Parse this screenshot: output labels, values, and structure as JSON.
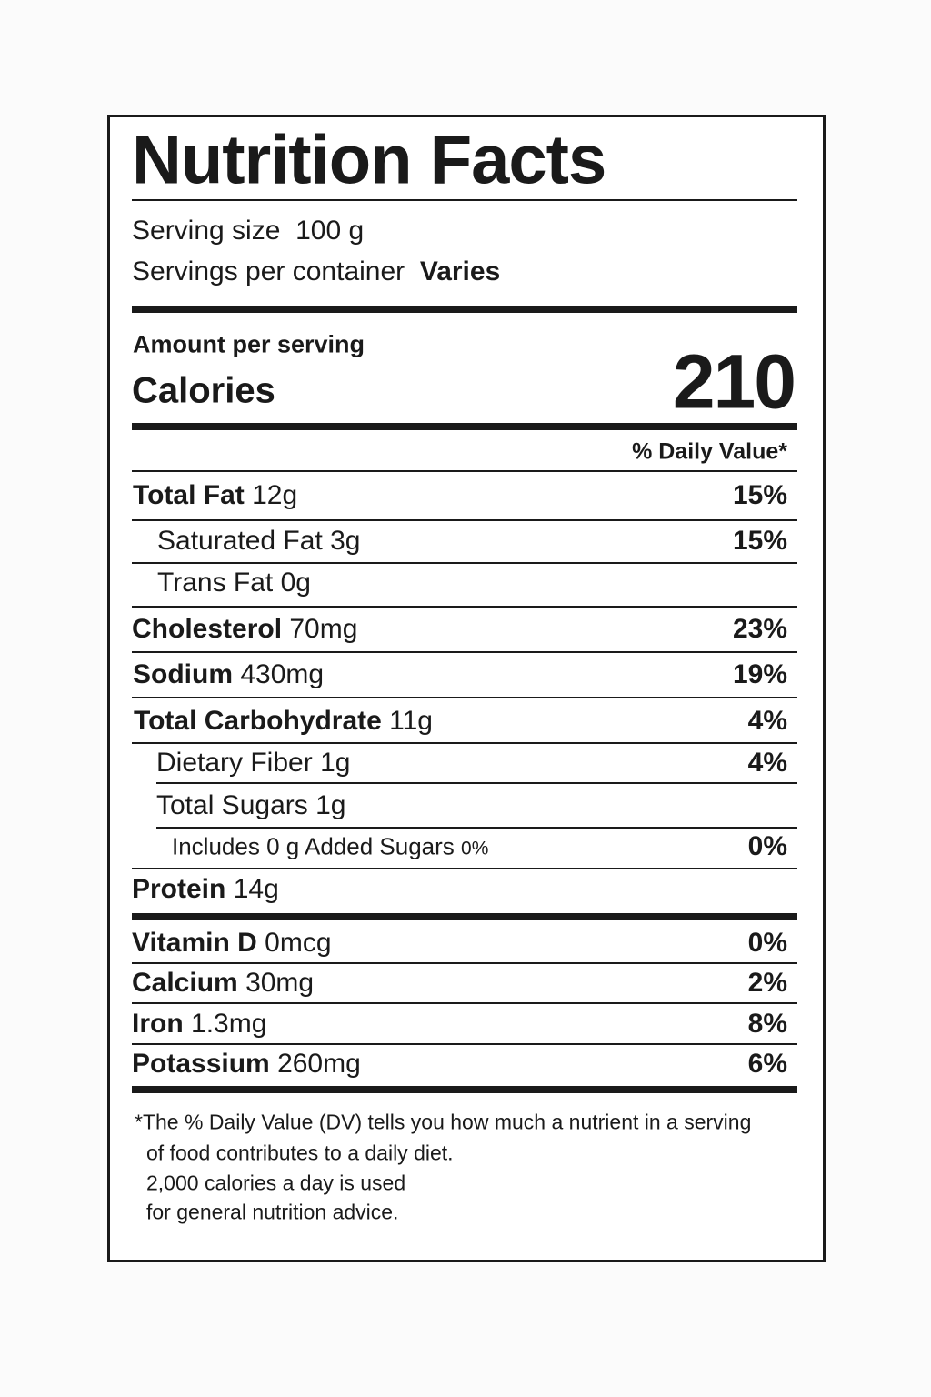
{
  "title": "Nutrition Facts",
  "serving": {
    "size_label": "Serving size",
    "size": "100 g",
    "per_container_label": "Servings per container",
    "per_container": "Varies"
  },
  "amount_per_serving": "Amount per serving",
  "calories": {
    "label": "Calories",
    "value": "210"
  },
  "daily_value_header": "% Daily Value*",
  "rows": [
    {
      "name": "Total Fat",
      "amount": "12g",
      "dv": "15%"
    },
    {
      "name": "Saturated Fat",
      "amount": "3g",
      "dv": "15%"
    },
    {
      "name": "Trans Fat",
      "amount": "0g"
    },
    {
      "name": "Cholesterol",
      "amount": "70mg",
      "dv": "23%"
    },
    {
      "name": "Sodium",
      "amount": "430mg",
      "dv": "19%"
    },
    {
      "name": "Total Carbohydrate",
      "amount": "11g",
      "dv": "4%"
    },
    {
      "name": "Dietary Fiber",
      "amount": "1g",
      "dv": "4%"
    },
    {
      "name": "Total Sugars",
      "amount": "1g"
    },
    {
      "name": "Includes 0 g Added Sugars",
      "amount": "0%",
      "dv": "0%"
    },
    {
      "name": "Protein",
      "amount": "14g"
    },
    {
      "name": "Vitamin D",
      "amount": "0mcg",
      "dv": "0%"
    },
    {
      "name": "Calcium",
      "amount": "30mg",
      "dv": "2%"
    },
    {
      "name": "Iron",
      "amount": "1.3mg",
      "dv": "8%"
    },
    {
      "name": "Potassium",
      "amount": "260mg",
      "dv": "6%"
    }
  ],
  "footnote": [
    "*The % Daily Value (DV) tells you how much a nutrient in a serving",
    "of food contributes to a daily diet.",
    "2,000 calories a day is used",
    "for general nutrition advice."
  ]
}
